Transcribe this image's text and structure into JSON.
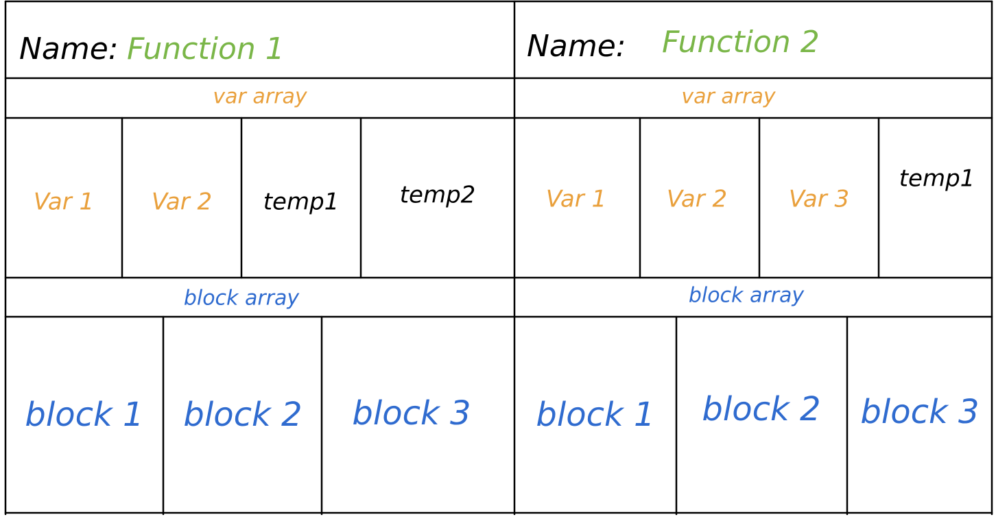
{
  "colors": {
    "ink": "#000000",
    "name_color": "#7ab648",
    "var_color": "#e9a03c",
    "block_color": "#2f6bcf"
  },
  "functions": [
    {
      "name_prefix": "Name:",
      "name": "Function 1",
      "var_array_label": "var array",
      "vars": [
        {
          "label": "Var 1",
          "kind": "var"
        },
        {
          "label": "Var 2",
          "kind": "var"
        },
        {
          "label": "temp1",
          "kind": "temp"
        },
        {
          "label": "temp2",
          "kind": "temp"
        }
      ],
      "block_array_label": "block array",
      "blocks": [
        "block 1",
        "block 2",
        "block 3"
      ]
    },
    {
      "name_prefix": "Name:",
      "name": "Function 2",
      "var_array_label": "var array",
      "vars": [
        {
          "label": "Var 1",
          "kind": "var"
        },
        {
          "label": "Var 2",
          "kind": "var"
        },
        {
          "label": "Var 3",
          "kind": "var"
        },
        {
          "label": "temp1",
          "kind": "temp"
        }
      ],
      "block_array_label": "block array",
      "blocks": [
        "block 1",
        "block 2",
        "block 3"
      ]
    }
  ]
}
